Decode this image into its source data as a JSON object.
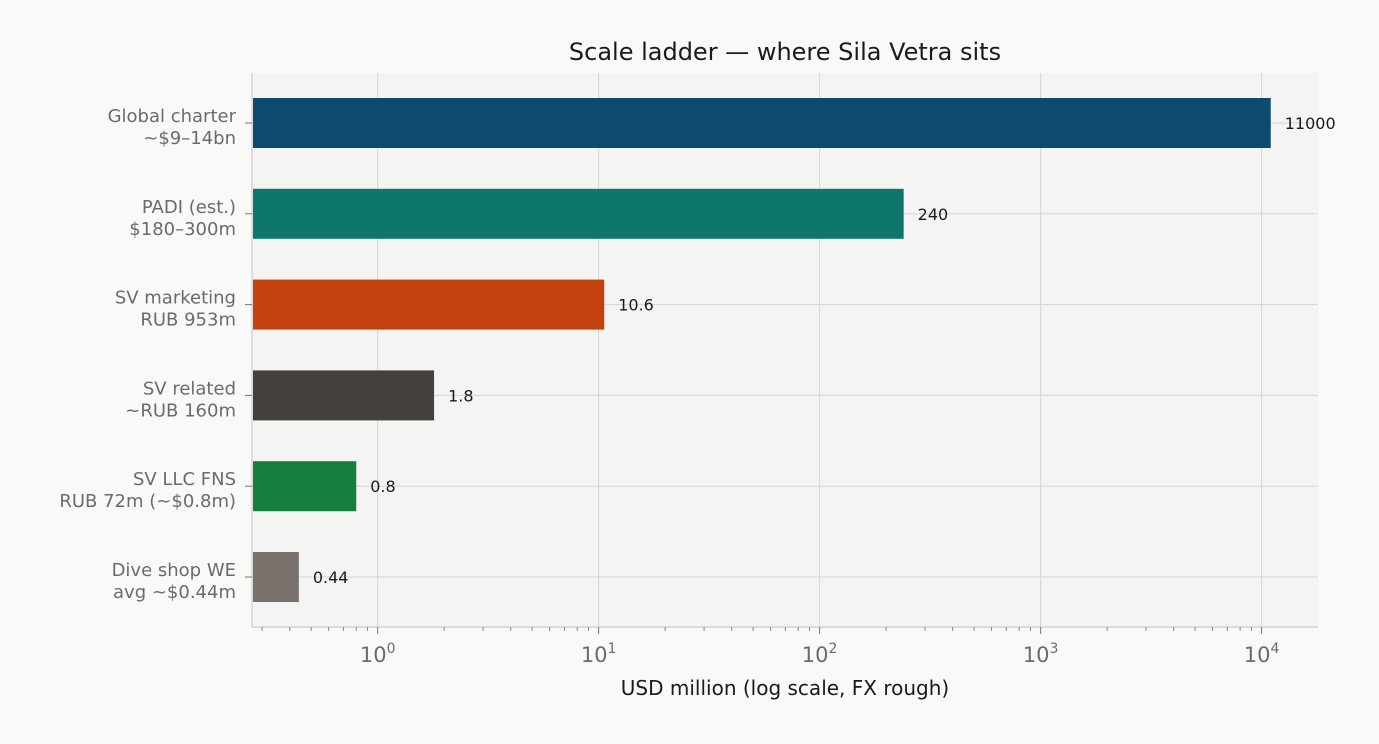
{
  "chart_data": {
    "type": "bar",
    "orientation": "horizontal",
    "title": "Scale ladder — where Sila Vetra sits",
    "xlabel": "USD million (log scale, FX rough)",
    "ylabel": "",
    "x_scale": "log",
    "xlim": [
      0.27,
      18000
    ],
    "x_ticks": [
      {
        "value": 1,
        "base": "10",
        "exp": "0"
      },
      {
        "value": 10,
        "base": "10",
        "exp": "1"
      },
      {
        "value": 100,
        "base": "10",
        "exp": "2"
      },
      {
        "value": 1000,
        "base": "10",
        "exp": "3"
      },
      {
        "value": 10000,
        "base": "10",
        "exp": "4"
      }
    ],
    "grid": true,
    "bars": [
      {
        "label_line1": "Global charter",
        "label_line2": "~$9–14bn",
        "value": 11000,
        "value_label": "11000",
        "color": "#0d4b6e"
      },
      {
        "label_line1": "PADI (est.)",
        "label_line2": "$180–300m",
        "value": 240,
        "value_label": "240",
        "color": "#0f766e"
      },
      {
        "label_line1": "SV marketing",
        "label_line2": "RUB 953m",
        "value": 10.6,
        "value_label": "10.6",
        "color": "#c2410c"
      },
      {
        "label_line1": "SV related",
        "label_line2": "~RUB 160m",
        "value": 1.8,
        "value_label": "1.8",
        "color": "#44403c"
      },
      {
        "label_line1": "SV LLC FNS",
        "label_line2": "RUB 72m (~$0.8m)",
        "value": 0.8,
        "value_label": "0.8",
        "color": "#15803d"
      },
      {
        "label_line1": "Dive shop WE",
        "label_line2": "avg ~$0.44m",
        "value": 0.44,
        "value_label": "0.44",
        "color": "#78716c"
      }
    ],
    "colors": {
      "plot_bg": "#f4f4f2",
      "grid": "#d6d6d4",
      "axis": "#cccccc",
      "tick_label": "#6b6b6b",
      "text": "#1a1a1a"
    }
  }
}
